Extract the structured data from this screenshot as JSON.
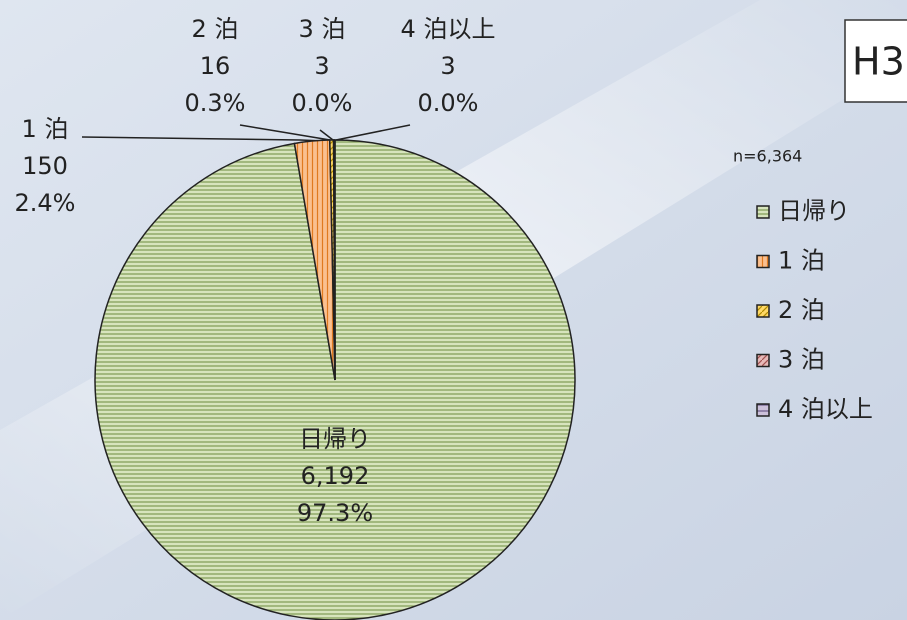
{
  "chart_data": {
    "type": "pie",
    "title": "H3",
    "subtitle": "n=6,364",
    "categories": [
      "日帰り",
      "1泊",
      "2泊",
      "3泊",
      "4泊以上"
    ],
    "legend_labels": [
      "日帰り",
      "1 泊",
      "2 泊",
      "3 泊",
      "4 泊以上"
    ],
    "slice_labels": [
      "日帰り",
      "1 泊",
      "2 泊",
      "3 泊",
      "4 泊以上"
    ],
    "values": [
      6192,
      150,
      16,
      3,
      3
    ],
    "value_labels": [
      "6,192",
      "150",
      "16",
      "3",
      "3"
    ],
    "percents": [
      97.3,
      2.4,
      0.3,
      0.0,
      0.0
    ],
    "percent_labels": [
      "97.3%",
      "2.4%",
      "0.3%",
      "0.0%",
      "0.0%"
    ],
    "colors": [
      "#d7e4bd",
      "#fac090",
      "#ffd966",
      "#e6b9b8",
      "#ccc1da"
    ],
    "start": "top",
    "direction": "clockwise",
    "legend": "right"
  }
}
